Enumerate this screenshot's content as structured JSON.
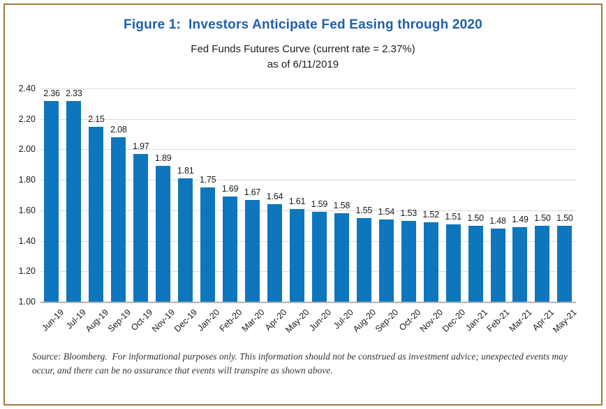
{
  "figure": {
    "title": "Figure 1:  Investors Anticipate Fed Easing through 2020",
    "subtitle": "Fed Funds Futures Curve (current rate = 2.37%)",
    "as_of": "as of 6/11/2019"
  },
  "chart_data": {
    "type": "bar",
    "title": "Figure 1: Investors Anticipate Fed Easing through 2020",
    "subtitle": "Fed Funds Futures Curve (current rate = 2.37%) as of 6/11/2019",
    "current_rate_pct": 2.37,
    "as_of_date": "6/11/2019",
    "categories": [
      "Jun-19",
      "Jul-19",
      "Aug-19",
      "Sep-19",
      "Oct-19",
      "Nov-19",
      "Dec-19",
      "Jan-20",
      "Feb-20",
      "Mar-20",
      "Apr-20",
      "May-20",
      "Jun-20",
      "Jul-20",
      "Aug-20",
      "Sep-20",
      "Oct-20",
      "Nov-20",
      "Dec-20",
      "Jan-21",
      "Feb-21",
      "Mar-21",
      "Apr-21",
      "May-21"
    ],
    "values": [
      2.36,
      2.33,
      2.15,
      2.08,
      1.97,
      1.89,
      1.81,
      1.75,
      1.69,
      1.67,
      1.64,
      1.61,
      1.59,
      1.58,
      1.55,
      1.54,
      1.53,
      1.52,
      1.51,
      1.5,
      1.48,
      1.49,
      1.5,
      1.5
    ],
    "xlabel": "",
    "ylabel": "",
    "ylim": [
      1.0,
      2.4
    ],
    "y_tick_step": 0.2,
    "y_ticks": [
      "2.40",
      "2.20",
      "2.00",
      "1.80",
      "1.60",
      "1.40",
      "1.20",
      "1.00"
    ],
    "grid": "horizontal",
    "legend": "none",
    "value_labels": true,
    "bar_color": "#0E76BD"
  },
  "source_note": {
    "line1": "Source: Bloomberg.  For informational purposes only. This information should not be construed as investment advice; unexpected events may",
    "line2": "occur, and there can be no assurance that events will transpire as shown above."
  },
  "colors": {
    "title_blue": "#1E5FAC",
    "bar_blue": "#0E76BD",
    "frame_gold": "#9E7B3E",
    "gridline_gray": "#D9D9D9",
    "axis_gray": "#B3B3B3",
    "text_dark": "#1A1A1A"
  }
}
